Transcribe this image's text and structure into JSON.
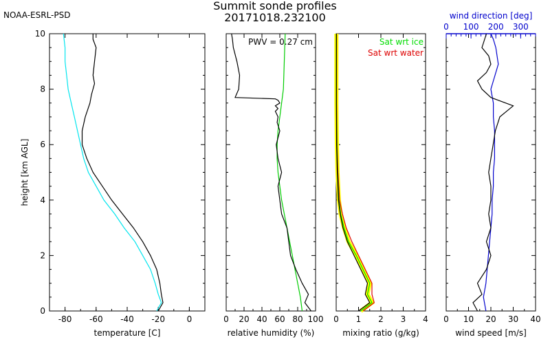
{
  "header": {
    "org": "NOAA-ESRL-PSD",
    "title_line1": "Summit sonde profiles",
    "title_line2": "20171018.232100"
  },
  "colors": {
    "temperature": "#000000",
    "dewpoint": "#00e5ee",
    "rh_ice": "#00cc00",
    "sat_ice": "#00dd00",
    "sat_water": "#dd0000",
    "mixing_band": "#ffff00",
    "wind_dir": "#0000cc"
  },
  "chart_data": [
    {
      "type": "line",
      "name": "temperature",
      "xlabel": "temperature [C]",
      "ylabel": "height [km AGL]",
      "xlim": [
        -90,
        10
      ],
      "ylim": [
        0,
        10
      ],
      "xticks": [
        -80,
        -60,
        -40,
        -20,
        0
      ],
      "yticks": [
        0,
        2,
        4,
        6,
        8,
        10
      ],
      "series": [
        {
          "x": [
            -20,
            -17,
            -18,
            -19,
            -21,
            -25,
            -30,
            -36,
            -43,
            -50,
            -56,
            -62,
            -66,
            -69,
            -69,
            -67,
            -64,
            -63,
            -61,
            -62,
            -61,
            -60,
            -62,
            -62
          ],
          "y": [
            0.0,
            0.3,
            0.6,
            1.0,
            1.5,
            2.0,
            2.5,
            3.0,
            3.5,
            4.0,
            4.5,
            5.0,
            5.5,
            6.0,
            6.5,
            7.0,
            7.5,
            7.8,
            8.2,
            8.5,
            9.0,
            9.5,
            9.8,
            10.0
          ]
        },
        {
          "x": [
            -21,
            -18,
            -20,
            -22,
            -25,
            -30,
            -35,
            -42,
            -48,
            -55,
            -60,
            -65,
            -68,
            -70,
            -72,
            -74,
            -76,
            -78,
            -79,
            -80,
            -80,
            -81
          ],
          "y": [
            0.0,
            0.3,
            0.6,
            1.0,
            1.5,
            2.0,
            2.5,
            3.0,
            3.5,
            4.0,
            4.5,
            5.0,
            5.5,
            6.0,
            6.5,
            7.0,
            7.5,
            8.0,
            8.5,
            9.0,
            9.5,
            10.0
          ]
        }
      ]
    },
    {
      "type": "line",
      "name": "relative humidity",
      "xlabel": "relative humidity (%)",
      "xlim": [
        0,
        100
      ],
      "ylim": [
        0,
        10
      ],
      "xticks": [
        0,
        20,
        40,
        60,
        80,
        100
      ],
      "annotation": "PWV = 0.27 cm",
      "series": [
        {
          "x": [
            95,
            88,
            92,
            85,
            78,
            72,
            70,
            68,
            62,
            60,
            58,
            62,
            58,
            56,
            60,
            57,
            58,
            55,
            58,
            55,
            60,
            58,
            55,
            10,
            14,
            15,
            12,
            8,
            7,
            6
          ],
          "y": [
            0.0,
            0.3,
            0.6,
            1.0,
            1.5,
            2.0,
            2.5,
            3.0,
            3.5,
            4.0,
            4.5,
            5.0,
            5.5,
            6.0,
            6.5,
            6.8,
            7.0,
            7.2,
            7.3,
            7.4,
            7.5,
            7.6,
            7.65,
            7.7,
            8.0,
            8.5,
            9.0,
            9.5,
            9.8,
            10.0
          ]
        },
        {
          "x": [
            85,
            83,
            80,
            77,
            74,
            71,
            68,
            65,
            62,
            60,
            58,
            57,
            57,
            58,
            60,
            62,
            64,
            65,
            66
          ],
          "y": [
            0.0,
            0.5,
            1.0,
            1.5,
            2.0,
            2.5,
            3.0,
            3.5,
            4.0,
            4.5,
            5.0,
            5.5,
            6.0,
            6.5,
            7.0,
            7.5,
            8.0,
            9.0,
            10.0
          ]
        }
      ]
    },
    {
      "type": "line",
      "name": "mixing ratio",
      "xlabel": "mixing ratio (g/kg)",
      "xlim": [
        0,
        4
      ],
      "ylim": [
        0,
        10
      ],
      "xticks": [
        0,
        1,
        2,
        3,
        4
      ],
      "legend": [
        {
          "label": "Sat wrt ice",
          "color": "#00dd00"
        },
        {
          "label": "Sat wrt water",
          "color": "#dd0000"
        }
      ],
      "series": [
        {
          "x": [
            1.0,
            1.5,
            1.3,
            1.4,
            1.1,
            0.8,
            0.5,
            0.3,
            0.18,
            0.1,
            0.05,
            0.02,
            0.01,
            0.01
          ],
          "y": [
            0.0,
            0.3,
            0.6,
            1.0,
            1.5,
            2.0,
            2.5,
            3.0,
            3.5,
            4.0,
            5.0,
            6.0,
            7.5,
            10.0
          ]
        },
        {
          "x": [
            1.1,
            1.6,
            1.4,
            1.5,
            1.2,
            0.9,
            0.55,
            0.35,
            0.2,
            0.12,
            0.06,
            0.03,
            0.01,
            0.01
          ],
          "y": [
            0.0,
            0.3,
            0.6,
            1.0,
            1.5,
            2.0,
            2.5,
            3.0,
            3.5,
            4.0,
            5.0,
            6.0,
            7.5,
            10.0
          ]
        },
        {
          "x": [
            1.2,
            1.7,
            1.6,
            1.6,
            1.3,
            1.0,
            0.7,
            0.45,
            0.28,
            0.15,
            0.08,
            0.04,
            0.02,
            0.02
          ],
          "y": [
            0.0,
            0.3,
            0.6,
            1.0,
            1.5,
            2.0,
            2.5,
            3.0,
            3.5,
            4.0,
            5.0,
            6.0,
            7.5,
            10.0
          ]
        }
      ]
    },
    {
      "type": "line",
      "name": "wind",
      "xlabel": "wind speed [m/s]",
      "top_xlabel": "wind direction [deg]",
      "xlim": [
        0,
        40
      ],
      "ylim": [
        0,
        10
      ],
      "xticks": [
        0,
        10,
        20,
        30,
        40
      ],
      "top_xlim": [
        0,
        360
      ],
      "top_xticks": [
        0,
        100,
        200,
        300
      ],
      "series": [
        {
          "x": [
            14,
            12,
            16,
            14,
            18,
            20,
            18,
            20,
            19,
            20,
            20,
            19,
            20,
            21,
            22,
            24,
            27,
            30,
            20,
            16,
            14,
            18,
            20,
            19,
            16,
            18
          ],
          "y": [
            0.0,
            0.3,
            0.6,
            1.0,
            1.5,
            2.0,
            2.5,
            3.0,
            3.5,
            4.0,
            4.5,
            5.0,
            5.5,
            6.0,
            6.5,
            7.0,
            7.2,
            7.4,
            7.7,
            8.0,
            8.3,
            8.6,
            8.9,
            9.2,
            9.5,
            10.0
          ]
        },
        {
          "x": [
            160,
            150,
            160,
            165,
            170,
            175,
            180,
            185,
            185,
            190,
            190,
            195,
            195,
            195,
            190,
            190,
            180,
            190,
            200,
            210,
            205,
            200,
            190,
            180
          ],
          "y": [
            0.0,
            0.5,
            1.0,
            1.5,
            2.0,
            2.5,
            3.0,
            3.5,
            4.0,
            4.5,
            5.0,
            5.5,
            6.0,
            6.5,
            7.0,
            7.5,
            8.0,
            8.3,
            8.6,
            8.9,
            9.2,
            9.5,
            9.8,
            10.0
          ]
        }
      ]
    }
  ]
}
